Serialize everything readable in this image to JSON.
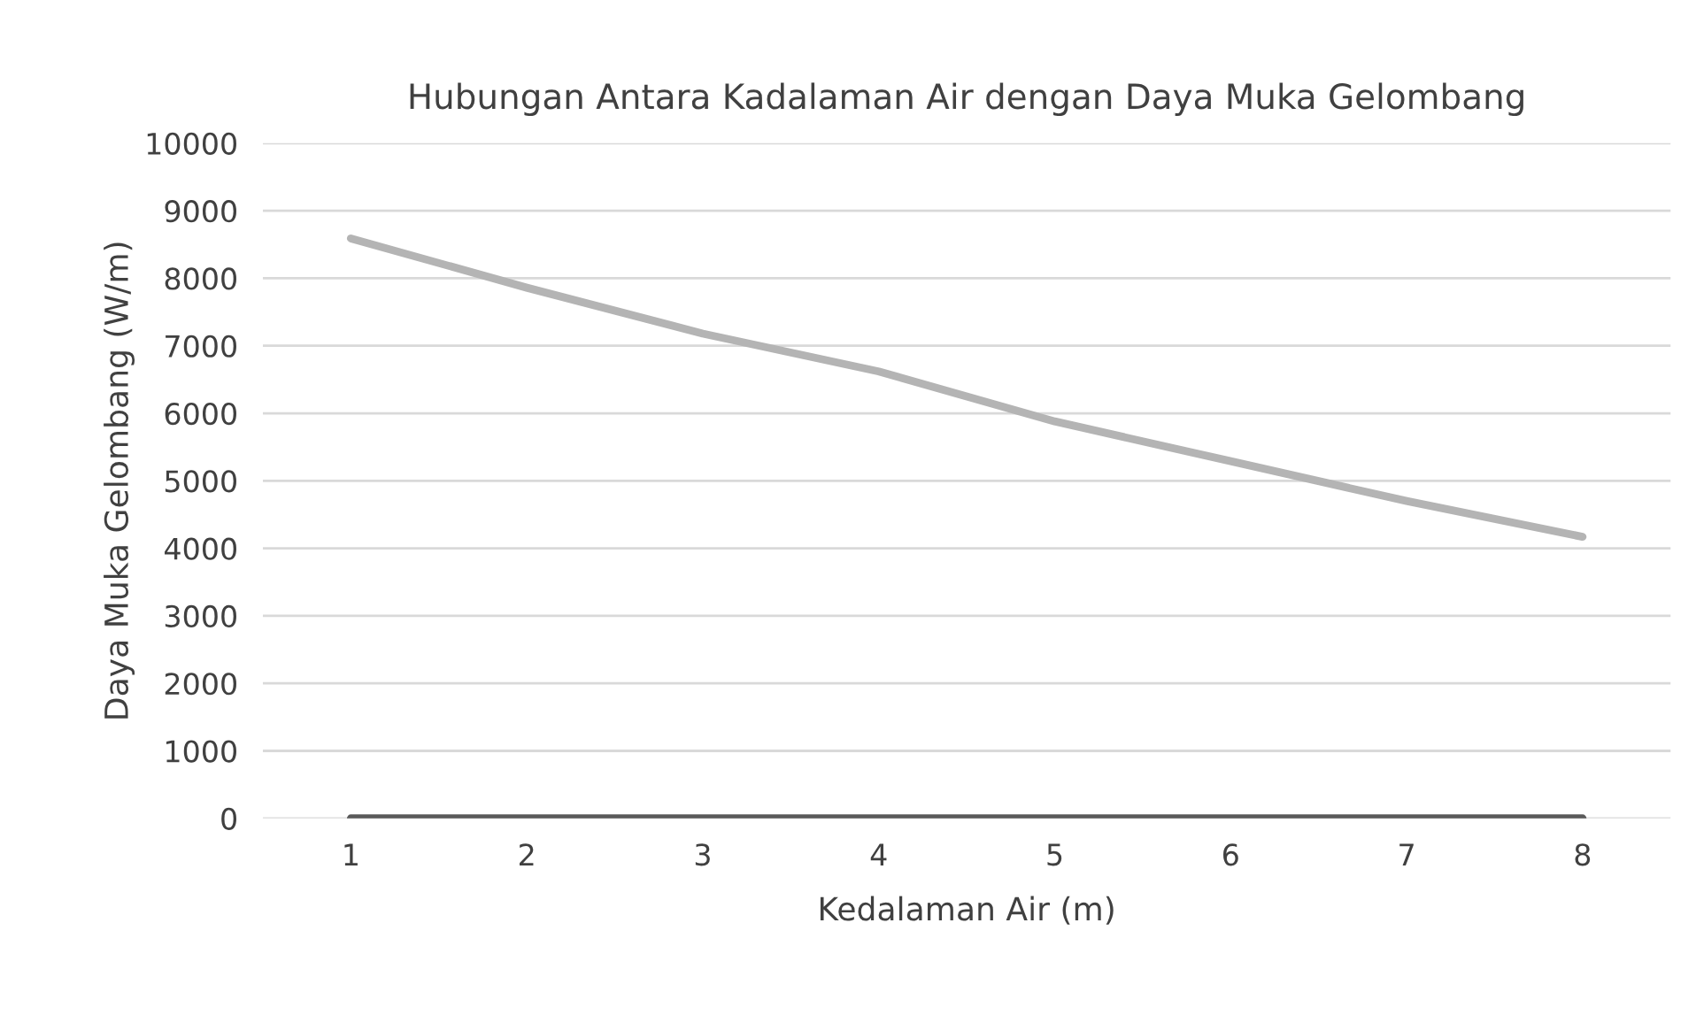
{
  "chart_data": {
    "type": "line",
    "title": "Hubungan Antara Kadalaman Air dengan Daya Muka Gelombang",
    "xlabel": "Kedalaman Air (m)",
    "ylabel": "Daya Muka Gelombang (W/m)",
    "categories": [
      "1",
      "2",
      "3",
      "4",
      "5",
      "6",
      "7",
      "8"
    ],
    "series": [
      {
        "color": "#b4b4b4",
        "values": [
          8590,
          7860,
          7180,
          6620,
          5880,
          5290,
          4700,
          4170
        ]
      },
      {
        "color": "#595959",
        "values": [
          0,
          0,
          0,
          0,
          0,
          0,
          0,
          0
        ]
      }
    ],
    "ylim": [
      0,
      10000
    ],
    "yticks": [
      0,
      1000,
      2000,
      3000,
      4000,
      5000,
      6000,
      7000,
      8000,
      9000,
      10000
    ],
    "grid": "y",
    "legend": false,
    "marker": "none",
    "line_style": "solid"
  }
}
